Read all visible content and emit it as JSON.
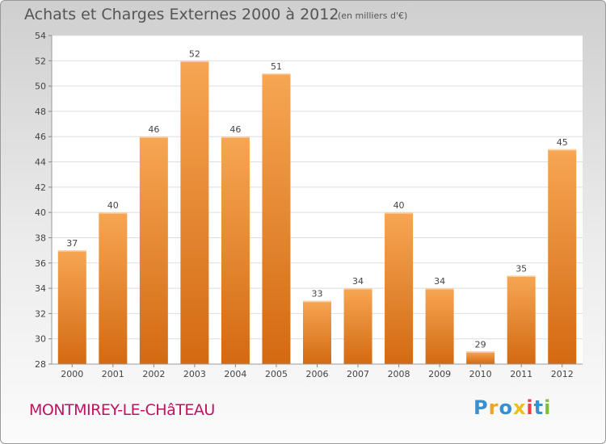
{
  "title": "Achats et Charges Externes 2000 à 2012",
  "unit_note": "(en milliers d'€)",
  "commune": "MONTMIREY-LE-CHâTEAU",
  "logo": {
    "text": "Proxiti",
    "letters": [
      "P",
      "r",
      "o",
      "x",
      "i",
      "t",
      "i"
    ],
    "colors": [
      "#3a8fd0",
      "#f0a030",
      "#3a8fd0",
      "#e8c020",
      "#e84040",
      "#3a8fd0",
      "#7cc040"
    ]
  },
  "colors": {
    "bar_top": "#f7a653",
    "bar_bottom": "#d36a12",
    "title_text": "#555555",
    "commune_text": "#c0125f"
  },
  "chart_data": {
    "type": "bar",
    "categories": [
      "2000",
      "2001",
      "2002",
      "2003",
      "2004",
      "2005",
      "2006",
      "2007",
      "2008",
      "2009",
      "2010",
      "2011",
      "2012"
    ],
    "values": [
      37,
      40,
      46,
      52,
      46,
      51,
      33,
      34,
      40,
      34,
      29,
      35,
      45
    ],
    "data_labels": [
      "37",
      "40",
      "46",
      "52",
      "46",
      "51",
      "33",
      "34",
      "40",
      "34",
      "29",
      "35",
      "45"
    ],
    "title": "Achats et Charges Externes 2000 à 2012",
    "xlabel": "",
    "ylabel": "",
    "ylim": [
      28,
      54
    ],
    "yticks": [
      28,
      30,
      32,
      34,
      36,
      38,
      40,
      42,
      44,
      46,
      48,
      50,
      52,
      54
    ],
    "grid": true,
    "legend": "none"
  }
}
